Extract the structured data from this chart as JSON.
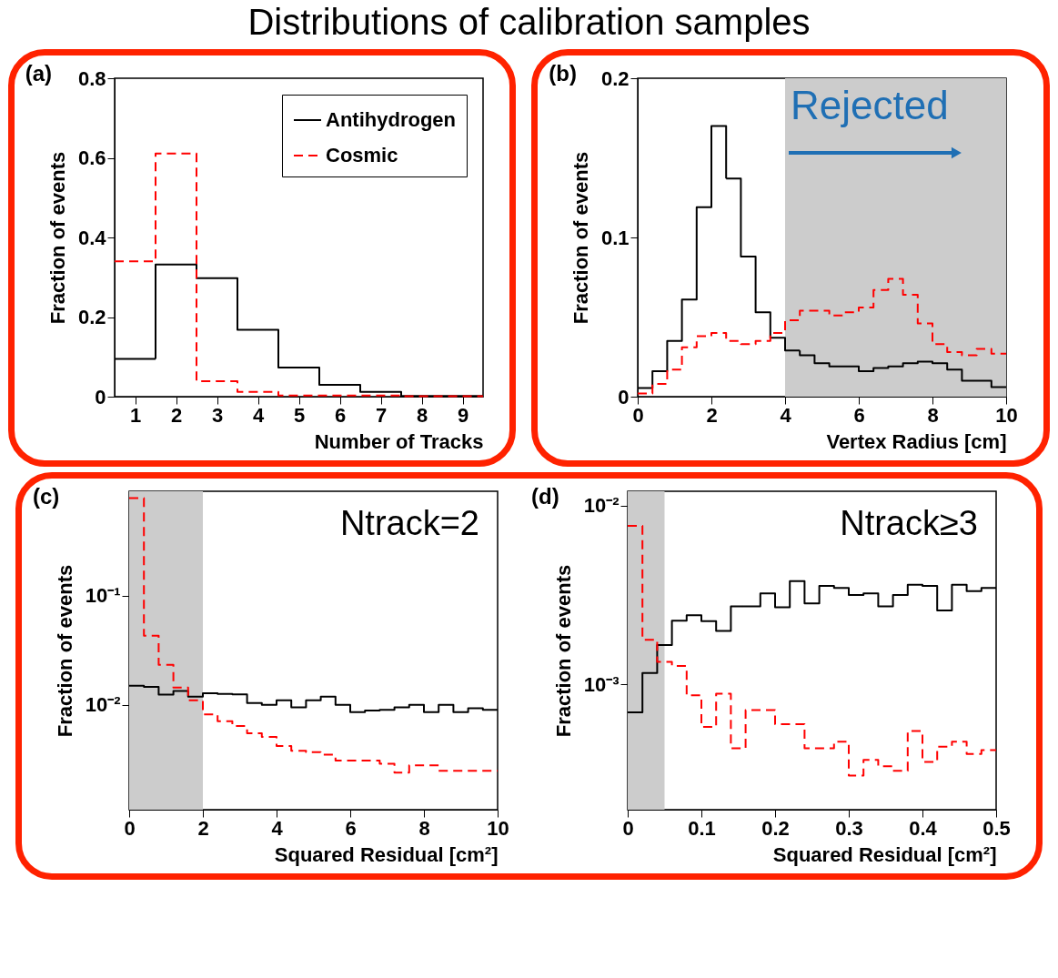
{
  "chart_data": [
    {
      "type": "histogram",
      "title": "Distributions of calibration samples",
      "xlabel": "Number of Tracks",
      "ylabel": "Fraction of events",
      "annotations": [
        "(a)"
      ],
      "bins": [
        0.5,
        1.5,
        2.5,
        3.5,
        4.5,
        5.5,
        6.5,
        7.5,
        8.5,
        9.5
      ],
      "series": [
        {
          "name": "Antihydrogen",
          "color": "#000000",
          "line_style": "solid",
          "values": [
            0.095,
            0.332,
            0.298,
            0.168,
            0.073,
            0.03,
            0.012,
            0.002,
            0.002
          ]
        },
        {
          "name": "Cosmic",
          "color": "#ff0000",
          "line_style": "dashed",
          "values": [
            0.34,
            0.611,
            0.039,
            0.012,
            0.003,
            0.003,
            0.003,
            0.001,
            0.001
          ]
        }
      ],
      "xlim": [
        0.5,
        9.5
      ],
      "xticks": [
        1,
        2,
        3,
        4,
        5,
        6,
        7,
        8,
        9
      ],
      "ylim": [
        0,
        0.8
      ],
      "yticks": [
        0,
        0.2,
        0.4,
        0.6,
        0.8
      ],
      "legend": "top right"
    },
    {
      "type": "histogram",
      "xlabel": "Vertex Radius [cm]",
      "ylabel": "Fraction of events",
      "annotations": [
        "(b)"
      ],
      "bins": [
        0,
        0.4,
        0.8,
        1.2,
        1.6,
        2.0,
        2.4,
        2.8,
        3.2,
        3.6,
        4.0,
        4.4,
        4.8,
        5.2,
        5.6,
        6.0,
        6.4,
        6.8,
        7.2,
        7.6,
        8.0,
        8.4,
        8.8,
        9.2,
        9.6,
        10
      ],
      "series": [
        {
          "color": "#000000",
          "line_style": "solid",
          "values": [
            0.0054,
            0.016,
            0.035,
            0.061,
            0.119,
            0.17,
            0.137,
            0.088,
            0.053,
            0.037,
            0.029,
            0.026,
            0.021,
            0.019,
            0.019,
            0.016,
            0.018,
            0.019,
            0.021,
            0.022,
            0.021,
            0.017,
            0.01,
            0.01,
            0.006
          ]
        },
        {
          "color": "#ff0000",
          "line_style": "dashed",
          "values": [
            0.002,
            0.008,
            0.017,
            0.031,
            0.038,
            0.04,
            0.035,
            0.033,
            0.035,
            0.04,
            0.048,
            0.054,
            0.054,
            0.051,
            0.053,
            0.056,
            0.067,
            0.074,
            0.064,
            0.046,
            0.033,
            0.028,
            0.026,
            0.03,
            0.027
          ]
        }
      ],
      "bands": [
        {
          "axis": "x",
          "from": 4,
          "to": 10,
          "label": "Rejected",
          "color": "#cccccc"
        }
      ],
      "xlim": [
        0,
        10
      ],
      "xticks": [
        0,
        2,
        4,
        6,
        8,
        10
      ],
      "ylim": [
        0,
        0.2
      ],
      "yticks": [
        0,
        0.1,
        0.2
      ]
    },
    {
      "type": "histogram",
      "xlabel": "Squared Residual [cm²]",
      "ylabel": "Fraction of events",
      "annotations": [
        "(c)",
        "Ntrack=2"
      ],
      "bins": [
        0,
        0.4,
        0.8,
        1.2,
        1.6,
        2.0,
        2.4,
        2.8,
        3.2,
        3.6,
        4.0,
        4.4,
        4.8,
        5.2,
        5.6,
        6.0,
        6.4,
        6.8,
        7.2,
        7.6,
        8.0,
        8.4,
        8.8,
        9.2,
        9.6,
        10
      ],
      "series": [
        {
          "color": "#000000",
          "line_style": "solid",
          "values": [
            0.015,
            0.0146,
            0.0124,
            0.0134,
            0.0119,
            0.0128,
            0.0126,
            0.0125,
            0.0104,
            0.01,
            0.011,
            0.0095,
            0.011,
            0.0119,
            0.01,
            0.0086,
            0.0089,
            0.009,
            0.0095,
            0.01,
            0.0086,
            0.01,
            0.0086,
            0.0093,
            0.009
          ]
        },
        {
          "color": "#ff0000",
          "line_style": "dashed",
          "values": [
            0.78,
            0.043,
            0.0233,
            0.0144,
            0.011,
            0.0082,
            0.0071,
            0.0064,
            0.0055,
            0.0051,
            0.0042,
            0.0038,
            0.0037,
            0.0035,
            0.0031,
            0.0031,
            0.0031,
            0.0029,
            0.0024,
            0.0028,
            0.0028,
            0.0025,
            0.0025,
            0.0025,
            0.0025
          ]
        }
      ],
      "bands": [
        {
          "axis": "x",
          "from": 0,
          "to": 2,
          "color": "#cccccc"
        }
      ],
      "xlim": [
        0,
        10
      ],
      "xticks": [
        0,
        2,
        4,
        6,
        8,
        10
      ],
      "ylim": [
        0.0011,
        0.9
      ],
      "yticks": [
        {
          "value": 0.1,
          "label": "10⁻¹"
        },
        {
          "value": 0.01,
          "label": "10⁻²"
        }
      ],
      "log": "y"
    },
    {
      "type": "histogram",
      "xlabel": "Squared Residual [cm²]",
      "ylabel": "Fraction of events",
      "annotations": [
        "(d)",
        "Ntrack≥3"
      ],
      "bins": [
        0,
        0.02,
        0.04,
        0.06,
        0.08,
        0.1,
        0.12,
        0.14,
        0.16,
        0.18,
        0.2,
        0.22,
        0.24,
        0.26,
        0.28,
        0.3,
        0.32,
        0.34,
        0.36,
        0.38,
        0.4,
        0.42,
        0.44,
        0.46,
        0.48,
        0.5
      ],
      "series": [
        {
          "color": "#000000",
          "line_style": "solid",
          "values": [
            0.0007,
            0.00116,
            0.00166,
            0.00227,
            0.00244,
            0.00226,
            0.00199,
            0.00273,
            0.00273,
            0.00323,
            0.0027,
            0.00378,
            0.00284,
            0.00355,
            0.00346,
            0.00316,
            0.00323,
            0.00273,
            0.00316,
            0.00361,
            0.00355,
            0.00259,
            0.00361,
            0.00332,
            0.00346
          ]
        },
        {
          "color": "#ff0000",
          "line_style": "dashed",
          "values": [
            0.0077,
            0.00178,
            0.00134,
            0.00127,
            0.00087,
            0.00058,
            0.00089,
            0.00044,
            0.00072,
            0.00072,
            0.0006,
            0.0006,
            0.00044,
            0.00044,
            0.00048,
            0.00031,
            0.00038,
            0.00035,
            0.00033,
            0.00055,
            0.00037,
            0.00045,
            0.00048,
            0.00041,
            0.00043
          ]
        }
      ],
      "bands": [
        {
          "axis": "x",
          "from": 0,
          "to": 0.05,
          "color": "#cccccc"
        }
      ],
      "xlim": [
        0,
        0.5
      ],
      "xticks": [
        0,
        0.1,
        0.2,
        0.3,
        0.4,
        0.5
      ],
      "ylim": [
        0.0002,
        0.012
      ],
      "yticks": [
        {
          "value": 0.01,
          "label": "10⁻²"
        },
        {
          "value": 0.001,
          "label": "10⁻³"
        }
      ],
      "log": "y"
    }
  ]
}
